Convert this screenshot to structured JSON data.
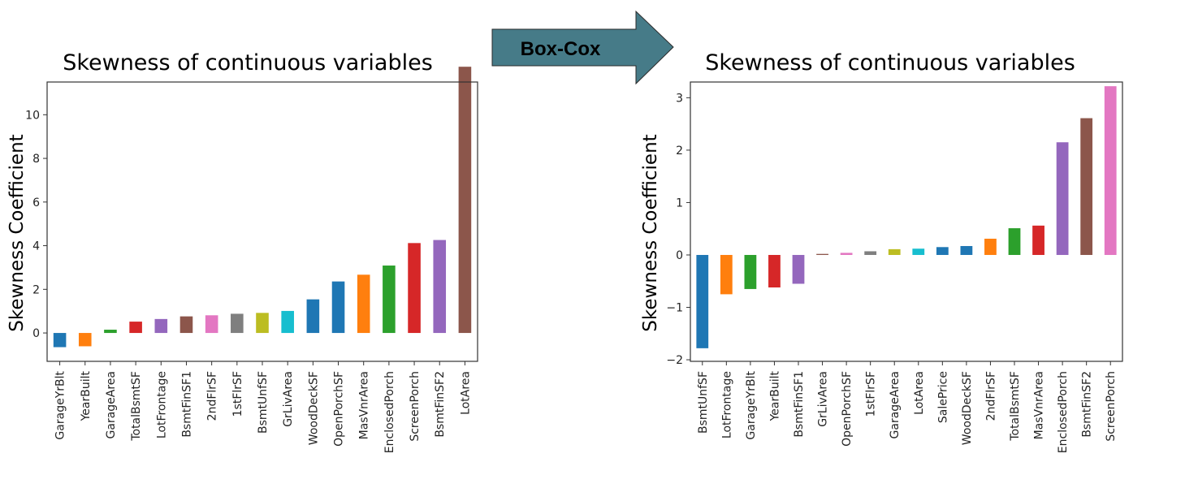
{
  "arrow": {
    "label": "Box-Cox",
    "color": "#467b88"
  },
  "chart_data": [
    {
      "type": "bar",
      "title": "Skewness of continuous variables",
      "ylabel": "Skewness Coefficient",
      "xlabel": "",
      "ylim": [
        -1.3,
        11.5
      ],
      "yticks": [
        0,
        2,
        4,
        6,
        8,
        10
      ],
      "ytick_labels": [
        "0",
        "2",
        "4",
        "6",
        "8",
        "10"
      ],
      "grid": false,
      "categories": [
        "GarageYrBlt",
        "YearBuilt",
        "GarageArea",
        "TotalBsmtSF",
        "LotFrontage",
        "BsmtFinSF1",
        "2ndFlrSF",
        "1stFlrSF",
        "BsmtUnfSF",
        "GrLivArea",
        "WoodDeckSF",
        "OpenPorchSF",
        "MasVnrArea",
        "EnclosedPorch",
        "ScreenPorch",
        "BsmtFinSF2",
        "LotArea"
      ],
      "values": [
        -0.65,
        -0.61,
        0.15,
        0.52,
        0.64,
        0.76,
        0.81,
        0.88,
        0.92,
        1.01,
        1.54,
        2.36,
        2.67,
        3.09,
        4.12,
        4.26,
        12.2
      ],
      "colors": [
        "#1f77b4",
        "#ff7f0e",
        "#2ca02c",
        "#d62728",
        "#9467bd",
        "#8c564b",
        "#e377c2",
        "#7f7f7f",
        "#bcbd22",
        "#17becf",
        "#1f77b4",
        "#1f77b4",
        "#ff7f0e",
        "#2ca02c",
        "#d62728",
        "#9467bd",
        "#8c564b"
      ]
    },
    {
      "type": "bar",
      "title": "Skewness of continuous variables",
      "ylabel": "Skewness Coefficient",
      "xlabel": "",
      "ylim": [
        -2.03,
        3.3
      ],
      "yticks": [
        -2,
        -1,
        0,
        1,
        2,
        3
      ],
      "ytick_labels": [
        "−2",
        "−1",
        "0",
        "1",
        "2",
        "3"
      ],
      "grid": false,
      "categories": [
        "BsmtUnfSF",
        "LotFrontage",
        "GarageYrBlt",
        "YearBuilt",
        "BsmtFinSF1",
        "GrLivArea",
        "OpenPorchSF",
        "1stFlrSF",
        "GarageArea",
        "LotArea",
        "SalePrice",
        "WoodDeckSF",
        "2ndFlrSF",
        "TotalBsmtSF",
        "MasVnrArea",
        "EnclosedPorch",
        "BsmtFinSF2",
        "ScreenPorch"
      ],
      "values": [
        -1.78,
        -0.75,
        -0.65,
        -0.62,
        -0.55,
        0.02,
        0.04,
        0.07,
        0.11,
        0.12,
        0.15,
        0.17,
        0.31,
        0.51,
        0.56,
        2.15,
        2.61,
        3.22
      ],
      "colors": [
        "#1f77b4",
        "#ff7f0e",
        "#2ca02c",
        "#d62728",
        "#9467bd",
        "#8c564b",
        "#e377c2",
        "#7f7f7f",
        "#bcbd22",
        "#17becf",
        "#1f77b4",
        "#1f77b4",
        "#ff7f0e",
        "#2ca02c",
        "#d62728",
        "#9467bd",
        "#8c564b",
        "#e377c2"
      ]
    }
  ]
}
